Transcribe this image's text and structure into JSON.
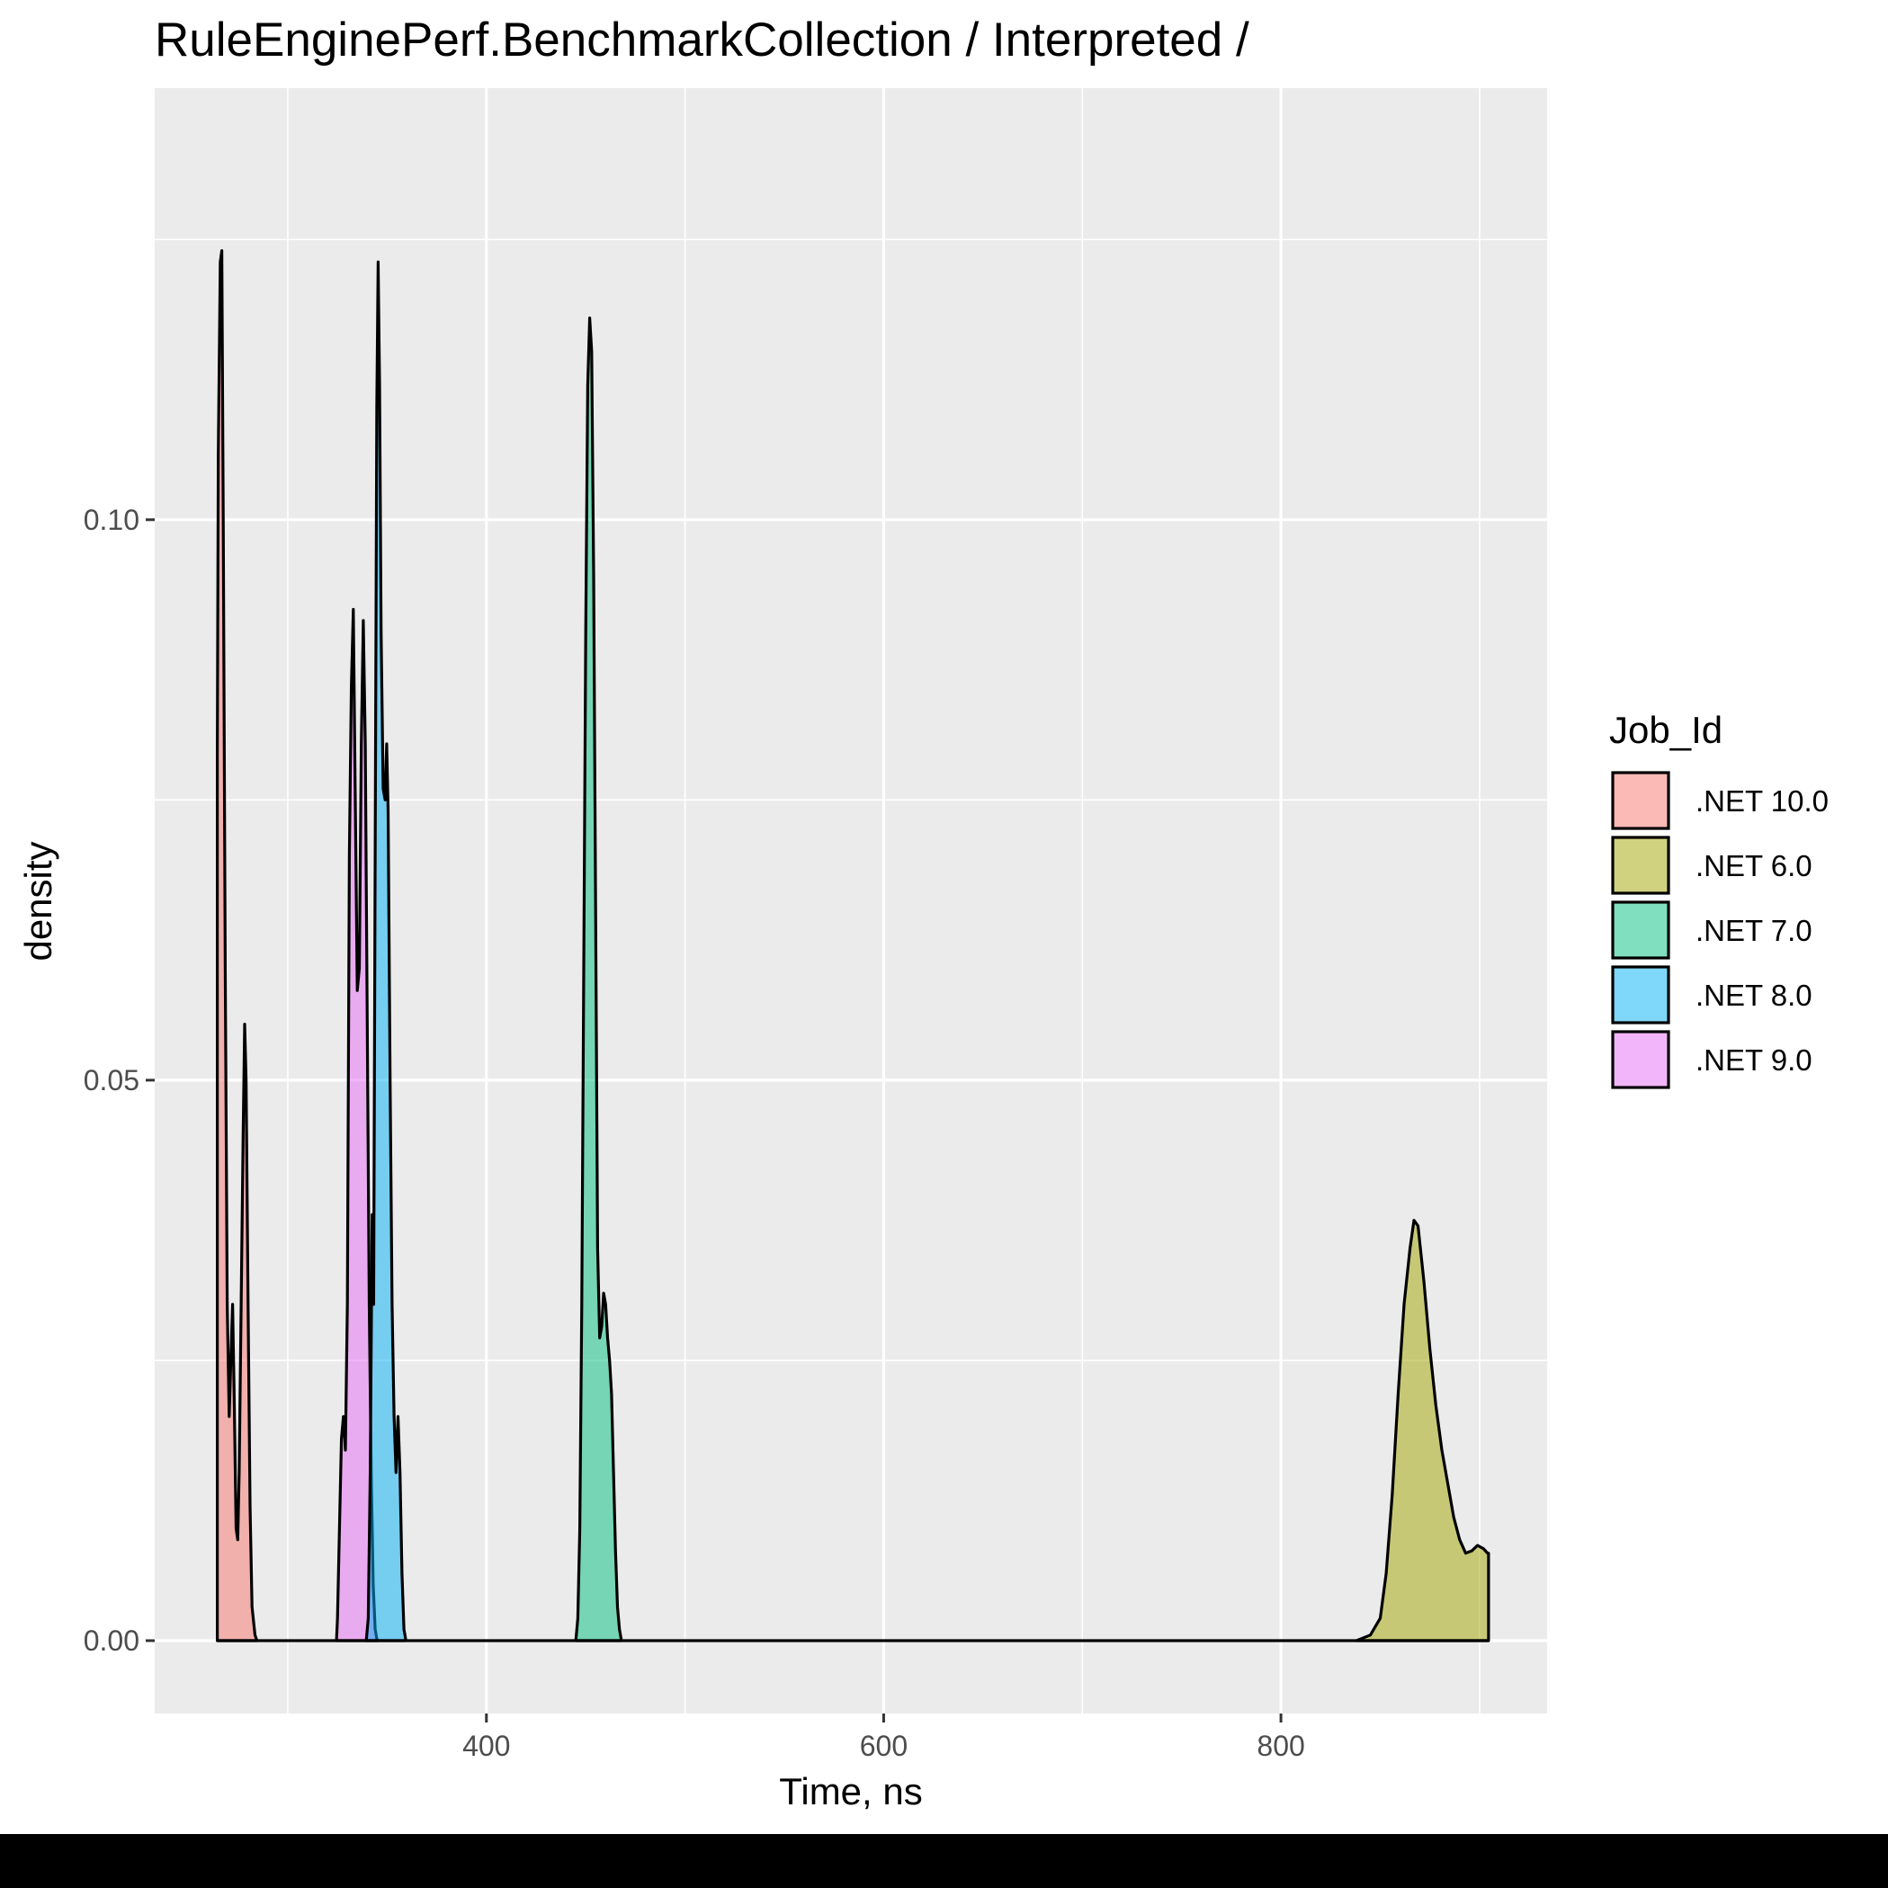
{
  "chart_data": {
    "type": "area",
    "title": "RuleEnginePerf.BenchmarkCollection / Interpreted /",
    "xlabel": "Time, ns",
    "ylabel": "density",
    "xlim": [
      233,
      934
    ],
    "ylim": [
      -0.0065,
      0.1385
    ],
    "x_ticks": [
      400,
      600,
      800
    ],
    "x_tick_labels": [
      "400",
      "600",
      "800"
    ],
    "y_ticks": [
      0.0,
      0.05,
      0.1
    ],
    "y_tick_labels": [
      "0.00",
      "0.05",
      "0.10"
    ],
    "x_minor_gridlines": [
      300,
      500,
      700,
      900
    ],
    "y_minor_gridlines": [
      0.025,
      0.075,
      0.125
    ],
    "grid": true,
    "legend": {
      "title": "Job_Id",
      "placement": "right"
    },
    "series": [
      {
        "name": ".NET 10.0",
        "color": "#F8766D",
        "points": [
          [
            264.5,
            0.079
          ],
          [
            265,
            0.106
          ],
          [
            266,
            0.123
          ],
          [
            266.8,
            0.124
          ],
          [
            267.5,
            0.1
          ],
          [
            268.5,
            0.06
          ],
          [
            269.5,
            0.03
          ],
          [
            270.5,
            0.02
          ],
          [
            271.5,
            0.026
          ],
          [
            272.2,
            0.03
          ],
          [
            273,
            0.022
          ],
          [
            274,
            0.01
          ],
          [
            274.8,
            0.009
          ],
          [
            275.5,
            0.015
          ],
          [
            276.5,
            0.03
          ],
          [
            277.5,
            0.045
          ],
          [
            278.3,
            0.055
          ],
          [
            279,
            0.05
          ],
          [
            280,
            0.03
          ],
          [
            281,
            0.012
          ],
          [
            282,
            0.003
          ],
          [
            283.5,
            0.0005
          ],
          [
            284.5,
            0.0
          ]
        ]
      },
      {
        "name": ".NET 9.0",
        "color": "#E76BF3",
        "points": [
          [
            324.5,
            0.0
          ],
          [
            325,
            0.002
          ],
          [
            326,
            0.01
          ],
          [
            327,
            0.018
          ],
          [
            328,
            0.02
          ],
          [
            329,
            0.017
          ],
          [
            330,
            0.03
          ],
          [
            331,
            0.07
          ],
          [
            332,
            0.085
          ],
          [
            333,
            0.092
          ],
          [
            334,
            0.075
          ],
          [
            335,
            0.058
          ],
          [
            336,
            0.06
          ],
          [
            337,
            0.08
          ],
          [
            338,
            0.091
          ],
          [
            339,
            0.08
          ],
          [
            340,
            0.055
          ],
          [
            341,
            0.03
          ],
          [
            342,
            0.015
          ],
          [
            343,
            0.005
          ],
          [
            344,
            0.001
          ],
          [
            345,
            0.0
          ]
        ]
      },
      {
        "name": ".NET 8.0",
        "color": "#00B0F6",
        "points": [
          [
            339.5,
            0.0
          ],
          [
            340.5,
            0.002
          ],
          [
            341.5,
            0.015
          ],
          [
            342.5,
            0.038
          ],
          [
            343.2,
            0.03
          ],
          [
            344,
            0.07
          ],
          [
            344.8,
            0.11
          ],
          [
            345.5,
            0.123
          ],
          [
            346.2,
            0.112
          ],
          [
            347,
            0.09
          ],
          [
            348,
            0.076
          ],
          [
            349,
            0.075
          ],
          [
            349.8,
            0.08
          ],
          [
            350.5,
            0.074
          ],
          [
            351.5,
            0.05
          ],
          [
            352.5,
            0.03
          ],
          [
            353.5,
            0.02
          ],
          [
            354.5,
            0.015
          ],
          [
            355.5,
            0.02
          ],
          [
            356.5,
            0.015
          ],
          [
            357.5,
            0.006
          ],
          [
            358.5,
            0.001
          ],
          [
            359.5,
            0.0
          ]
        ]
      },
      {
        "name": ".NET 7.0",
        "color": "#00BF7D",
        "points": [
          [
            445,
            0.0
          ],
          [
            446,
            0.002
          ],
          [
            447,
            0.01
          ],
          [
            448,
            0.03
          ],
          [
            449,
            0.06
          ],
          [
            450,
            0.09
          ],
          [
            451,
            0.112
          ],
          [
            452,
            0.118
          ],
          [
            453,
            0.115
          ],
          [
            454,
            0.095
          ],
          [
            455,
            0.065
          ],
          [
            456,
            0.035
          ],
          [
            457,
            0.027
          ],
          [
            458,
            0.028
          ],
          [
            459,
            0.031
          ],
          [
            460,
            0.03
          ],
          [
            461,
            0.027
          ],
          [
            462,
            0.025
          ],
          [
            463,
            0.022
          ],
          [
            464,
            0.015
          ],
          [
            465,
            0.008
          ],
          [
            466,
            0.003
          ],
          [
            467,
            0.001
          ],
          [
            468,
            0.0
          ]
        ]
      },
      {
        "name": ".NET 6.0",
        "color": "#A3A500",
        "points": [
          [
            838,
            0.0
          ],
          [
            845,
            0.0005
          ],
          [
            850,
            0.002
          ],
          [
            853,
            0.006
          ],
          [
            856,
            0.013
          ],
          [
            859,
            0.022
          ],
          [
            862,
            0.03
          ],
          [
            865,
            0.035
          ],
          [
            867,
            0.0375
          ],
          [
            869,
            0.037
          ],
          [
            872,
            0.032
          ],
          [
            875,
            0.026
          ],
          [
            878,
            0.021
          ],
          [
            881,
            0.017
          ],
          [
            884,
            0.014
          ],
          [
            887,
            0.011
          ],
          [
            890,
            0.009
          ],
          [
            893,
            0.0078
          ],
          [
            896,
            0.008
          ],
          [
            899,
            0.0085
          ],
          [
            902,
            0.0082
          ],
          [
            904,
            0.0078
          ],
          [
            904.5,
            0.0078
          ]
        ]
      }
    ]
  }
}
